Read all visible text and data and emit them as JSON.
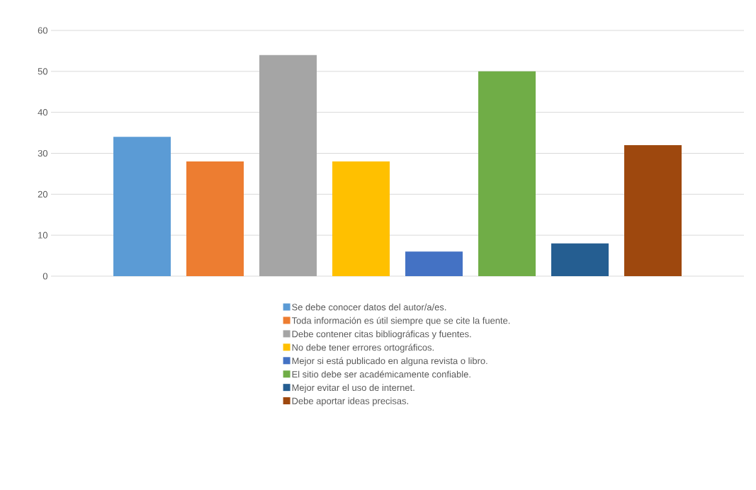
{
  "chart_data": {
    "type": "bar",
    "categories": [
      null
    ],
    "series": [
      {
        "name": "Se debe conocer datos del autor/a/es.",
        "color": "#5b9bd5",
        "values": [
          34
        ]
      },
      {
        "name": "Toda información es útil siempre que se cite la fuente.",
        "color": "#ed7d31",
        "values": [
          28
        ]
      },
      {
        "name": "Debe contener citas bibliográficas y fuentes.",
        "color": "#a5a5a5",
        "values": [
          54
        ]
      },
      {
        "name": "No debe tener errores ortográficos.",
        "color": "#ffc000",
        "values": [
          28
        ]
      },
      {
        "name": "Mejor si está publicado en alguna revista o libro.",
        "color": "#4472c4",
        "values": [
          6
        ]
      },
      {
        "name": "El sitio debe ser académicamente confiable.",
        "color": "#70ad47",
        "values": [
          50
        ]
      },
      {
        "name": "Mejor evitar el uso de internet.",
        "color": "#255e91",
        "values": [
          8
        ]
      },
      {
        "name": "Debe aportar ideas precisas.",
        "color": "#9e480e",
        "values": [
          32
        ]
      }
    ],
    "ylim": [
      0,
      60
    ],
    "yticks": [
      0,
      10,
      20,
      30,
      40,
      50,
      60
    ],
    "grid": "y",
    "legend": "bottom"
  }
}
